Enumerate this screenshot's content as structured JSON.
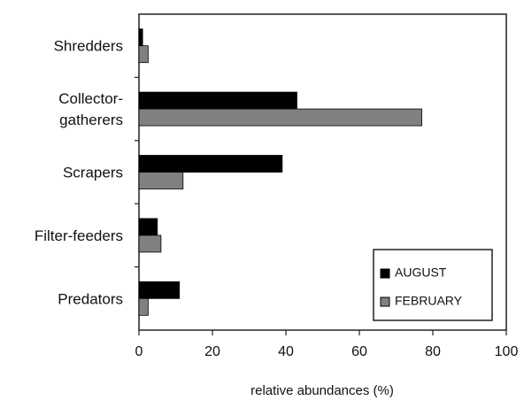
{
  "chart_data": {
    "type": "bar",
    "orientation": "horizontal",
    "categories": [
      [
        "Shredders"
      ],
      [
        "Collector-",
        "gatherers"
      ],
      [
        "Scrapers"
      ],
      [
        "Filter-feeders"
      ],
      [
        "Predators"
      ]
    ],
    "series": [
      {
        "name": "AUGUST",
        "values": [
          1,
          43,
          39,
          5,
          11
        ],
        "color": "#000000"
      },
      {
        "name": "FEBRUARY",
        "values": [
          2.5,
          77,
          12,
          6,
          2.5
        ],
        "color": "#808080"
      }
    ],
    "xlabel": "relative abundances (%)",
    "ylabel": "",
    "xlim": [
      0,
      100
    ],
    "xticks": [
      "0",
      "20",
      "40",
      "60",
      "80",
      "100"
    ],
    "grid": false,
    "legend_position": "bottom-right"
  }
}
